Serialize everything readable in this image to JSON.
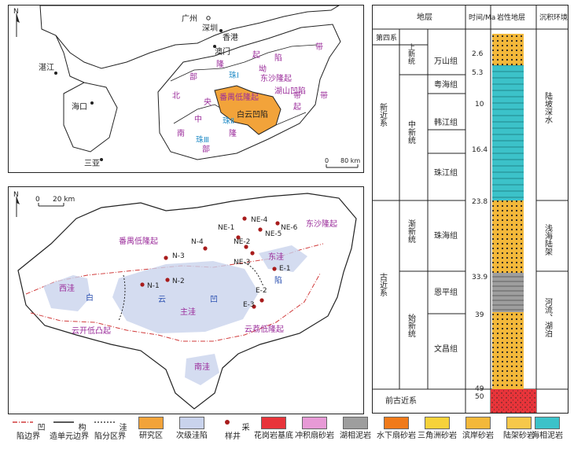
{
  "overview_map": {
    "cities": [
      "广州",
      "深圳",
      "香港",
      "澳门",
      "湛江",
      "海口",
      "三亚"
    ],
    "units": {
      "north_uplift_chars": [
        "北",
        "部",
        "隆",
        "起",
        "带"
      ],
      "south_uplift_chars": [
        "南",
        "部",
        "隆",
        "起",
        "带"
      ],
      "central_zone_chars": [
        "中",
        "央",
        "坳",
        "陷",
        "带"
      ],
      "zhu1": [
        "珠",
        "Ⅰ"
      ],
      "zhu2": [
        "珠",
        "Ⅱ"
      ],
      "zhu3": [
        "珠",
        "Ⅲ"
      ],
      "dongsha": "东沙隆起",
      "hushan": "湖山凹陷",
      "panyu": "番禺低隆起",
      "baiyun": "白云凹陷"
    },
    "scale": [
      "0",
      "80 km"
    ],
    "north": "N"
  },
  "detail_map": {
    "north": "N",
    "scale": [
      "0",
      "20 km"
    ],
    "regions": {
      "panyu": "番禺低隆起",
      "dongsha": "东沙隆起",
      "xiwa": "西洼",
      "bai": "白",
      "yun": "云",
      "ao": "凹",
      "zhuwa": "主洼",
      "dongwa": "东洼",
      "xian": "陷",
      "yunkai": "云开低凸起",
      "yunli": "云荔低隆起",
      "nanwa": "南洼"
    },
    "wells": [
      "N-1",
      "N-2",
      "N-3",
      "N-4",
      "NE-1",
      "NE-2",
      "NE-3",
      "NE-4",
      "NE-5",
      "NE-6",
      "E-1",
      "E-2",
      "E-3"
    ]
  },
  "strat_column": {
    "headers": {
      "strata": "地层",
      "time": "时间/Ma",
      "lith": "岩性地层",
      "env": "沉积环境"
    },
    "system_quaternary": "第四系",
    "system_neogene": "新近系",
    "system_paleogene": "古近系",
    "pre_paleogene": "前古近系",
    "series": {
      "upper": "上新统",
      "middle": "中新统",
      "oligo": "渐新统",
      "eocene": "始新统"
    },
    "formations": [
      "万山组",
      "粤海组",
      "韩江组",
      "珠江组",
      "珠海组",
      "恩平组",
      "文昌组"
    ],
    "ages": [
      "2.6",
      "5.3",
      "10",
      "16.4",
      "23.8",
      "33.9",
      "39",
      "49",
      "50"
    ],
    "age_values": [
      2.6,
      5.3,
      10,
      16.4,
      23.8,
      33.9,
      39,
      49,
      50
    ],
    "environments": [
      "陆坡深水",
      "浅海陆架",
      "河流、湖泊"
    ]
  },
  "legend": {
    "items": [
      {
        "label": "凹陷边界",
        "type": "dashdot-red"
      },
      {
        "label": "构造单元边界",
        "type": "solid-black"
      },
      {
        "label": "洼陷分区界",
        "type": "dotted-black"
      },
      {
        "label": "研究区",
        "type": "fill",
        "color": "#f2a33a"
      },
      {
        "label": "次级洼陷",
        "type": "fill",
        "color": "#c9d3ec"
      },
      {
        "label": "采样井",
        "type": "well"
      },
      {
        "label": "花岗岩基底",
        "type": "fill",
        "color": "#e8343a"
      },
      {
        "label": "冲积扇砂岩",
        "type": "fill",
        "color": "#e79ad6"
      },
      {
        "label": "湖相泥岩",
        "type": "fill",
        "color": "#9e9e9e"
      },
      {
        "label": "水下扇砂岩",
        "type": "fill",
        "color": "#f07a1a"
      },
      {
        "label": "三角洲砂岩",
        "type": "fill",
        "color": "#f6d23a"
      },
      {
        "label": "滨岸砂岩",
        "type": "fill",
        "color": "#f3b83a"
      },
      {
        "label": "陆架砂岩",
        "type": "fill",
        "color": "#f6c84a"
      },
      {
        "label": "海相泥岩",
        "type": "fill",
        "color": "#3cc2c9"
      }
    ]
  }
}
